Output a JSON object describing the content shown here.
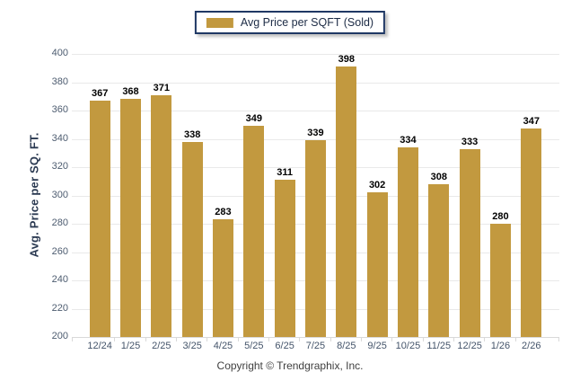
{
  "legend": {
    "label": "Avg Price per SQFT (Sold)"
  },
  "footer": {
    "copyright": "Copyright © Trendgraphix, Inc."
  },
  "chart_data": {
    "type": "bar",
    "title": "",
    "xlabel": "",
    "ylabel": "Avg. Price per SQ. FT.",
    "categories": [
      "12/24",
      "1/25",
      "2/25",
      "3/25",
      "4/25",
      "5/25",
      "6/25",
      "7/25",
      "8/25",
      "9/25",
      "10/25",
      "11/25",
      "12/25",
      "1/26",
      "2/26"
    ],
    "values": [
      367,
      368,
      371,
      338,
      283,
      349,
      311,
      339,
      398,
      302,
      334,
      308,
      333,
      280,
      347
    ],
    "series_name": "Avg Price per SQFT (Sold)",
    "ylim": [
      200,
      400
    ],
    "yticks": [
      200,
      220,
      240,
      260,
      280,
      300,
      320,
      340,
      360,
      380,
      400
    ],
    "grid": true,
    "legend_position": "top-center",
    "bar_color": "#C2993F",
    "value_labels": true,
    "gridline_color": "#e9e9e9",
    "axis_label_color": "#44546a",
    "legend_border_color": "#1f3864"
  }
}
